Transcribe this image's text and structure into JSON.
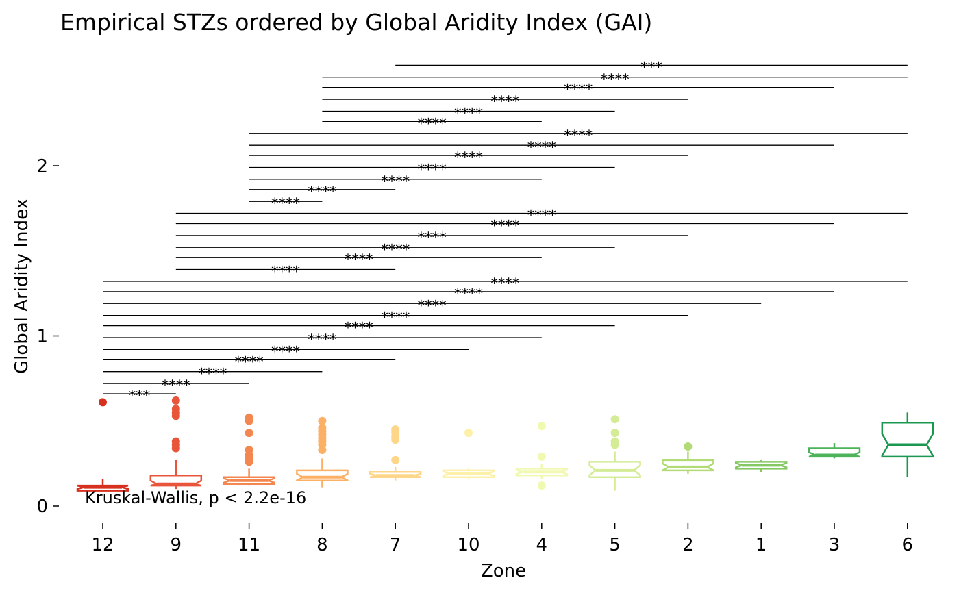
{
  "chart_data": {
    "type": "boxplot",
    "title": "Empirical STZs ordered by Global Aridity Index (GAI)",
    "xlabel": "Zone",
    "ylabel": "Global Aridity Index",
    "ylim": [
      -0.05,
      2.68
    ],
    "yticks": [
      0,
      1,
      2
    ],
    "grid": false,
    "legend": "none",
    "categories": [
      "12",
      "9",
      "11",
      "8",
      "7",
      "10",
      "4",
      "5",
      "2",
      "1",
      "3",
      "6"
    ],
    "colors": [
      "#d7301f",
      "#e8553a",
      "#f4874f",
      "#fbb066",
      "#fdd68a",
      "#fdf0a8",
      "#f1f8b0",
      "#d5ec96",
      "#b2db76",
      "#86c964",
      "#4db35a",
      "#1a9850"
    ],
    "boxes": [
      {
        "zone": "12",
        "min": 0.09,
        "q1": 0.09,
        "median": 0.11,
        "q3": 0.12,
        "max": 0.16,
        "outliers": [
          0.61
        ]
      },
      {
        "zone": "9",
        "min": 0.1,
        "q1": 0.12,
        "median": 0.13,
        "q3": 0.18,
        "max": 0.27,
        "outliers": [
          0.34,
          0.36,
          0.38,
          0.53,
          0.55,
          0.57,
          0.62
        ]
      },
      {
        "zone": "11",
        "min": 0.12,
        "q1": 0.13,
        "median": 0.15,
        "q3": 0.17,
        "max": 0.22,
        "outliers": [
          0.26,
          0.28,
          0.3,
          0.33,
          0.43,
          0.5,
          0.52
        ]
      },
      {
        "zone": "8",
        "min": 0.11,
        "q1": 0.15,
        "median": 0.17,
        "q3": 0.21,
        "max": 0.28,
        "outliers": [
          0.33,
          0.36,
          0.38,
          0.4,
          0.42,
          0.44,
          0.46,
          0.5
        ]
      },
      {
        "zone": "7",
        "min": 0.15,
        "q1": 0.17,
        "median": 0.18,
        "q3": 0.2,
        "max": 0.23,
        "outliers": [
          0.27,
          0.39,
          0.41,
          0.43,
          0.45
        ]
      },
      {
        "zone": "10",
        "min": 0.16,
        "q1": 0.17,
        "median": 0.19,
        "q3": 0.21,
        "max": 0.22,
        "outliers": [
          0.43
        ]
      },
      {
        "zone": "4",
        "min": 0.16,
        "q1": 0.18,
        "median": 0.2,
        "q3": 0.22,
        "max": 0.25,
        "outliers": [
          0.12,
          0.29,
          0.47
        ]
      },
      {
        "zone": "5",
        "min": 0.09,
        "q1": 0.17,
        "median": 0.21,
        "q3": 0.26,
        "max": 0.32,
        "outliers": [
          0.36,
          0.38,
          0.43,
          0.51
        ]
      },
      {
        "zone": "2",
        "min": 0.19,
        "q1": 0.21,
        "median": 0.23,
        "q3": 0.27,
        "max": 0.32,
        "outliers": [
          0.35
        ]
      },
      {
        "zone": "1",
        "min": 0.2,
        "q1": 0.22,
        "median": 0.24,
        "q3": 0.26,
        "max": 0.27,
        "outliers": []
      },
      {
        "zone": "3",
        "min": 0.28,
        "q1": 0.29,
        "median": 0.3,
        "q3": 0.34,
        "max": 0.37,
        "outliers": []
      },
      {
        "zone": "6",
        "min": 0.17,
        "q1": 0.29,
        "median": 0.36,
        "q3": 0.49,
        "max": 0.55,
        "outliers": []
      }
    ],
    "comparisons": [
      {
        "from": "12",
        "to": "9",
        "y": 0.66,
        "label": "***"
      },
      {
        "from": "12",
        "to": "11",
        "y": 0.72,
        "label": "****"
      },
      {
        "from": "12",
        "to": "8",
        "y": 0.79,
        "label": "****"
      },
      {
        "from": "12",
        "to": "7",
        "y": 0.86,
        "label": "****"
      },
      {
        "from": "12",
        "to": "10",
        "y": 0.92,
        "label": "****"
      },
      {
        "from": "12",
        "to": "4",
        "y": 0.99,
        "label": "****"
      },
      {
        "from": "12",
        "to": "5",
        "y": 1.06,
        "label": "****"
      },
      {
        "from": "12",
        "to": "2",
        "y": 1.12,
        "label": "****"
      },
      {
        "from": "12",
        "to": "1",
        "y": 1.19,
        "label": "****"
      },
      {
        "from": "12",
        "to": "3",
        "y": 1.26,
        "label": "****"
      },
      {
        "from": "12",
        "to": "6",
        "y": 1.32,
        "label": "****"
      },
      {
        "from": "9",
        "to": "7",
        "y": 1.39,
        "label": "****"
      },
      {
        "from": "9",
        "to": "4",
        "y": 1.46,
        "label": "****"
      },
      {
        "from": "9",
        "to": "5",
        "y": 1.52,
        "label": "****"
      },
      {
        "from": "9",
        "to": "2",
        "y": 1.59,
        "label": "****"
      },
      {
        "from": "9",
        "to": "3",
        "y": 1.66,
        "label": "****"
      },
      {
        "from": "9",
        "to": "6",
        "y": 1.72,
        "label": "****"
      },
      {
        "from": "11",
        "to": "8",
        "y": 1.79,
        "label": "****"
      },
      {
        "from": "11",
        "to": "7",
        "y": 1.86,
        "label": "****"
      },
      {
        "from": "11",
        "to": "4",
        "y": 1.92,
        "label": "****"
      },
      {
        "from": "11",
        "to": "5",
        "y": 1.99,
        "label": "****"
      },
      {
        "from": "11",
        "to": "2",
        "y": 2.06,
        "label": "****"
      },
      {
        "from": "11",
        "to": "3",
        "y": 2.12,
        "label": "****"
      },
      {
        "from": "11",
        "to": "6",
        "y": 2.19,
        "label": "****"
      },
      {
        "from": "8",
        "to": "4",
        "y": 2.26,
        "label": "****"
      },
      {
        "from": "8",
        "to": "5",
        "y": 2.32,
        "label": "****"
      },
      {
        "from": "8",
        "to": "2",
        "y": 2.39,
        "label": "****"
      },
      {
        "from": "8",
        "to": "3",
        "y": 2.46,
        "label": "****"
      },
      {
        "from": "8",
        "to": "6",
        "y": 2.52,
        "label": "****"
      },
      {
        "from": "7",
        "to": "6",
        "y": 2.59,
        "label": "***"
      }
    ],
    "annotation": "Kruskal-Wallis, p < 2.2e-16"
  }
}
